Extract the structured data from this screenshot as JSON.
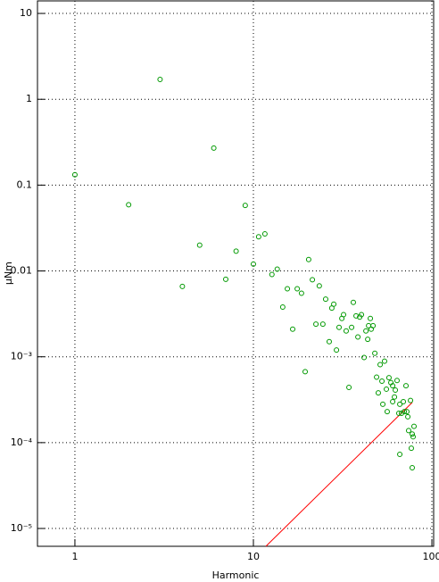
{
  "chart_data": {
    "type": "scatter",
    "xlabel": "Harmonic",
    "ylabel": "μNm",
    "xlog": true,
    "ylog": true,
    "grid": true,
    "xlim": [
      0.617,
      102.3
    ],
    "ylim": [
      6.2e-06,
      14.0
    ],
    "xticks": [
      1,
      10,
      100
    ],
    "yticks": [
      10,
      1,
      0.1,
      0.01,
      {
        "value": 0.001,
        "label": "10⁻³"
      },
      {
        "value": 0.0001,
        "label": "10⁻⁴"
      },
      {
        "value": 1e-05,
        "label": "10⁻⁵"
      }
    ],
    "points": {
      "color": "#009900",
      "x": [
        1,
        2,
        3,
        4,
        5,
        6,
        7,
        8,
        9,
        10,
        10.7,
        11.6,
        12.7,
        13.6,
        14.6,
        15.5,
        16.6,
        17.6,
        18.6,
        19.5,
        20.4,
        21.4,
        22.4,
        23.4,
        24.5,
        25.4,
        26.6,
        27.5,
        28.2,
        29.2,
        30.2,
        31.3,
        32.0,
        33.1,
        34.3,
        35.5,
        36.3,
        37.6,
        38.5,
        39.4,
        40.3,
        41.7,
        42.7,
        43.7,
        44.2,
        45.2,
        45.7,
        46.8,
        47.9,
        49.0,
        50.1,
        51.3,
        52.5,
        53.1,
        54.3,
        55.6,
        56.2,
        57.5,
        58.9,
        60.3,
        60.3,
        61.7,
        62.4,
        63.8,
        65.3,
        66.1,
        66.1,
        67.6,
        69.2,
        70.0,
        71.6,
        72.4,
        73.3,
        74.1,
        75.9,
        76.7,
        77.6,
        77.6,
        78.5,
        79.4
      ],
      "y": [
        0.132,
        0.059,
        1.7,
        0.0066,
        0.02,
        0.27,
        0.008,
        0.017,
        0.058,
        0.012,
        0.025,
        0.027,
        0.0091,
        0.0105,
        0.0038,
        0.0062,
        0.0021,
        0.0062,
        0.0055,
        0.00067,
        0.0136,
        0.0079,
        0.0024,
        0.0067,
        0.0024,
        0.0047,
        0.0015,
        0.0037,
        0.0041,
        0.0012,
        0.0022,
        0.0028,
        0.0031,
        0.002,
        0.00044,
        0.0022,
        0.0043,
        0.003,
        0.0017,
        0.0029,
        0.0031,
        0.00098,
        0.002,
        0.0016,
        0.0023,
        0.0028,
        0.0021,
        0.0023,
        0.0011,
        0.00058,
        0.00038,
        0.00081,
        0.00052,
        0.00028,
        0.00089,
        0.00042,
        0.00023,
        0.00057,
        0.0005,
        0.0003,
        0.00046,
        0.00034,
        0.00041,
        0.00053,
        0.00022,
        0.00028,
        7.3e-05,
        0.00022,
        0.0003,
        0.00023,
        0.00046,
        0.00023,
        0.0002,
        0.000138,
        0.00031,
        8.6e-05,
        5.1e-05,
        0.000126,
        0.000117,
        0.000155
      ]
    },
    "line": {
      "color": "#ff0000",
      "x": [
        11.75,
        77.6
      ],
      "y": [
        6.2e-06,
        0.000294
      ]
    }
  }
}
